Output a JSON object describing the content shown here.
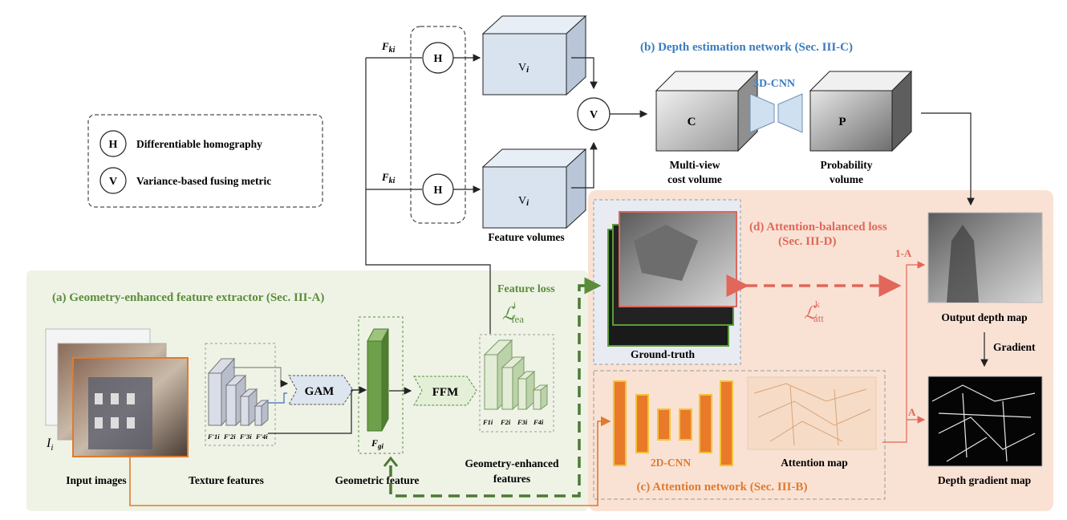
{
  "legend": {
    "h_symbol": "H",
    "h_text": "Differentiable homography",
    "v_symbol": "V",
    "v_text": "Variance-based fusing metric"
  },
  "top": {
    "fki_label_1": "F",
    "fki_label_2": "F",
    "fki_sub": "ki",
    "h1": "H",
    "h2": "H",
    "v_node": "V",
    "vol1": "V",
    "vol2": "V",
    "vol_sub": "i",
    "feature_volumes": "Feature volumes"
  },
  "depth_net": {
    "title": "(b) Depth estimation network  (Sec. III-C)",
    "cnn3d": "3D-CNN",
    "cost_symbol": "C",
    "prob_symbol": "P",
    "cost_label_1": "Multi-view",
    "cost_label_2": "cost volume",
    "prob_label_1": "Probability",
    "prob_label_2": "volume"
  },
  "extractor": {
    "title": "(a) Geometry-enhanced feature extractor (Sec. III-A)",
    "input_images": "Input images",
    "ii": "I",
    "ii_sub": "i",
    "texture_features": "Texture features",
    "tex_sub": [
      "F'1i",
      "F'2i",
      "F'3i",
      "F'4i"
    ],
    "gam": "GAM",
    "ffm": "FFM",
    "fgi": "F",
    "fgi_sub": "gi",
    "geometric_feature": "Geometric feature",
    "geo_enh_1": "Geometry-enhanced",
    "geo_enh_2": "features",
    "enh_sub": [
      "F1i",
      "F2i",
      "F3i",
      "F4i"
    ],
    "feature_loss": "Feature loss",
    "l_fea": "ℒ",
    "l_fea_sub": "fea",
    "l_fea_sup": "i"
  },
  "loss": {
    "title_1": "(d) Attention-balanced loss",
    "title_2": "(Sec. III-D)",
    "ground_truth": "Ground-truth",
    "l_att": "ℒ",
    "l_att_sub": "att",
    "l_att_sup": "k",
    "one_minus_a": "1-A",
    "a": "A",
    "output_depth": "Output depth map",
    "gradient": "Gradient",
    "depth_gradient": "Depth gradient map"
  },
  "attention": {
    "title": "(c) Attention network  (Sec. III-B)",
    "cnn2d": "2D-CNN",
    "attention_map": "Attention map"
  },
  "colors": {
    "green_bg": "#eef3e6",
    "orange_bg": "#f9e2d4",
    "blue_title": "#3a7bbf",
    "green_title": "#5b8c3a",
    "orange_title": "#e07a2e",
    "red_title": "#e0675a",
    "cube_blue": "#d9e2ef"
  }
}
